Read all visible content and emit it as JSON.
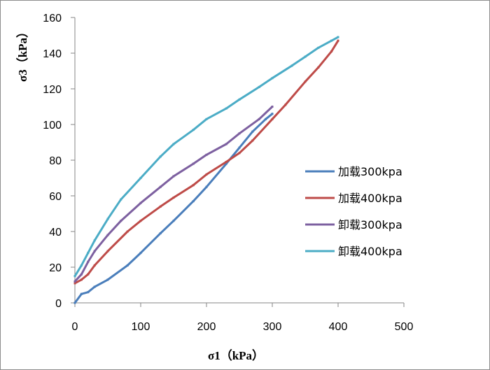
{
  "chart_data": {
    "type": "line",
    "xlabel": "σ1（kPa）",
    "ylabel": "σ3（kPa）",
    "xlim": [
      0,
      500
    ],
    "ylim": [
      0,
      160
    ],
    "x_ticks": [
      "0",
      "100",
      "200",
      "300",
      "400",
      "500"
    ],
    "y_ticks": [
      "0",
      "20",
      "40",
      "60",
      "80",
      "100",
      "120",
      "140",
      "160"
    ],
    "grid": false,
    "legend_placement": "right",
    "series": [
      {
        "name": "加载300kpa",
        "color": "#4a7ebb",
        "x": [
          0,
          10,
          20,
          30,
          50,
          80,
          100,
          130,
          150,
          180,
          200,
          230,
          250,
          270,
          290,
          300
        ],
        "y": [
          0,
          5,
          6,
          9,
          13,
          21,
          28,
          39,
          46,
          57,
          65,
          78,
          87,
          96,
          103,
          106
        ]
      },
      {
        "name": "加载400kpa",
        "color": "#be4b48",
        "x": [
          0,
          10,
          20,
          30,
          50,
          80,
          100,
          130,
          150,
          180,
          200,
          230,
          250,
          270,
          300,
          320,
          350,
          370,
          390,
          400
        ],
        "y": [
          11,
          13,
          16,
          21,
          29,
          40,
          46,
          54,
          59,
          66,
          72,
          79,
          84,
          91,
          103,
          111,
          124,
          132,
          141,
          147
        ]
      },
      {
        "name": "卸载300kpa",
        "color": "#7d60a0",
        "x": [
          0,
          10,
          20,
          30,
          50,
          70,
          100,
          130,
          150,
          180,
          200,
          230,
          250,
          280,
          300
        ],
        "y": [
          12,
          16,
          23,
          29,
          38,
          46,
          56,
          65,
          71,
          78,
          83,
          89,
          95,
          103,
          110
        ]
      },
      {
        "name": "卸载400kpa",
        "color": "#4bacc6",
        "x": [
          0,
          10,
          20,
          30,
          50,
          70,
          100,
          130,
          150,
          180,
          200,
          230,
          250,
          280,
          300,
          330,
          350,
          370,
          390,
          400
        ],
        "y": [
          15,
          21,
          28,
          35,
          47,
          58,
          70,
          82,
          89,
          97,
          103,
          109,
          114,
          121,
          126,
          133,
          138,
          143,
          147,
          149
        ]
      }
    ]
  }
}
